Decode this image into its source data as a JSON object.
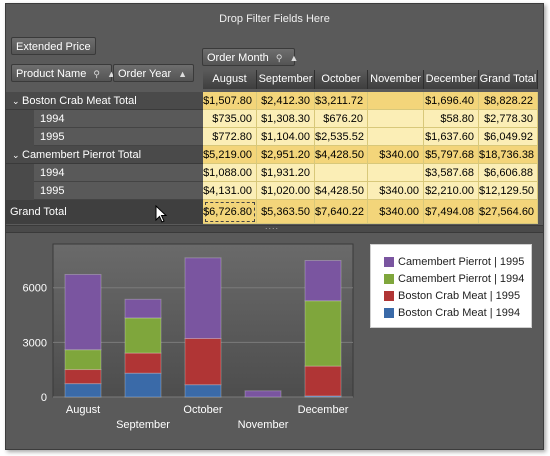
{
  "drop_zone": {
    "text": "Drop Filter Fields Here"
  },
  "data_fields": [
    {
      "label": "Extended Price"
    }
  ],
  "row_fields": [
    {
      "label": "Product Name",
      "icons": [
        "filter-icon",
        "sort-ascending-icon"
      ]
    },
    {
      "label": "Order Year",
      "icons": [
        "sort-ascending-icon"
      ]
    }
  ],
  "column_fields": [
    {
      "label": "Order Month",
      "icons": [
        "filter-icon",
        "sort-ascending-icon"
      ]
    }
  ],
  "column_headers": [
    "August",
    "September",
    "October",
    "November",
    "December",
    "Grand Total"
  ],
  "rows": [
    {
      "label": "Boston Crab Meat Total",
      "type": "total",
      "expanded": true,
      "values": [
        "$1,507.80",
        "$2,412.30",
        "$3,211.72",
        "",
        "$1,696.40",
        "$8,828.22"
      ]
    },
    {
      "label": "1994",
      "type": "year",
      "values": [
        "$735.00",
        "$1,308.30",
        "$676.20",
        "",
        "$58.80",
        "$2,778.30"
      ]
    },
    {
      "label": "1995",
      "type": "year",
      "values": [
        "$772.80",
        "$1,104.00",
        "$2,535.52",
        "",
        "$1,637.60",
        "$6,049.92"
      ]
    },
    {
      "label": "Camembert Pierrot Total",
      "type": "total",
      "expanded": true,
      "values": [
        "$5,219.00",
        "$2,951.20",
        "$4,428.50",
        "$340.00",
        "$5,797.68",
        "$18,736.38"
      ]
    },
    {
      "label": "1994",
      "type": "year",
      "values": [
        "$1,088.00",
        "$1,931.20",
        "",
        "",
        "$3,587.68",
        "$6,606.88"
      ]
    },
    {
      "label": "1995",
      "type": "year",
      "values": [
        "$4,131.00",
        "$1,020.00",
        "$4,428.50",
        "$340.00",
        "$2,210.00",
        "$12,129.50"
      ]
    }
  ],
  "grand_total": {
    "label": "Grand Total",
    "values": [
      "$6,726.80",
      "$5,363.50",
      "$7,640.22",
      "$340.00",
      "$7,494.08",
      "$27,564.60"
    ]
  },
  "colors": {
    "camembert_1995": "#7a55a0",
    "camembert_1994": "#7fa63c",
    "boston_1995": "#b03535",
    "boston_1994": "#3a6aa8"
  },
  "chart_data": {
    "type": "bar",
    "stacked": true,
    "categories": [
      "August",
      "September",
      "October",
      "November",
      "December"
    ],
    "series": [
      {
        "name": "Boston Crab Meat | 1994",
        "values": [
          735.0,
          1308.3,
          676.2,
          0,
          58.8
        ]
      },
      {
        "name": "Boston Crab Meat | 1995",
        "values": [
          772.8,
          1104.0,
          2535.52,
          0,
          1637.6
        ]
      },
      {
        "name": "Camembert Pierrot | 1994",
        "values": [
          1088.0,
          1931.2,
          0,
          0,
          3587.68
        ]
      },
      {
        "name": "Camembert Pierrot | 1995",
        "values": [
          4131.0,
          1020.0,
          4428.5,
          340.0,
          2210.0
        ]
      }
    ],
    "legend_order": [
      "Camembert Pierrot | 1995",
      "Camembert Pierrot | 1994",
      "Boston Crab Meat | 1995",
      "Boston Crab Meat | 1994"
    ],
    "yticks": [
      "0",
      "3000",
      "6000"
    ],
    "ylim": [
      0,
      8400
    ],
    "legend_position": "top-right",
    "grid": true
  }
}
